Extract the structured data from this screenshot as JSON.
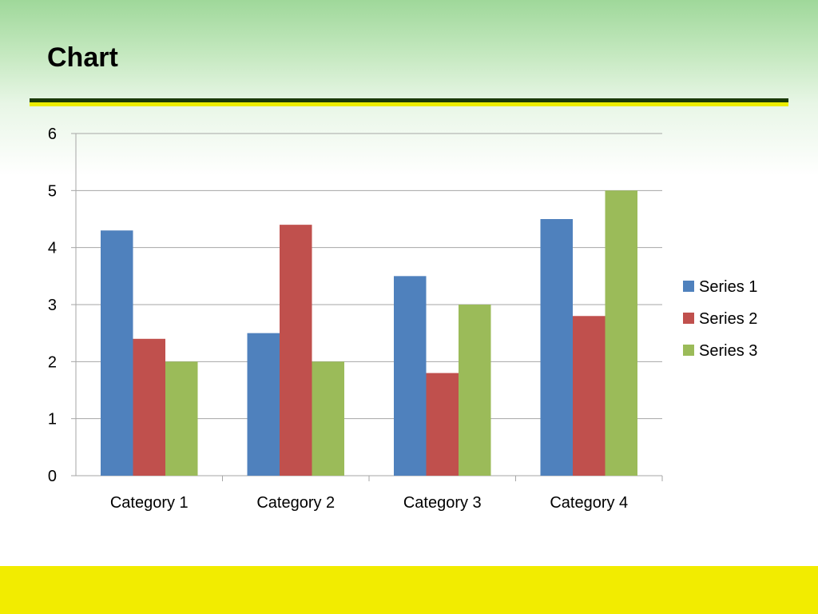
{
  "slide": {
    "title": "Chart",
    "colors": {
      "header_gradient_top": "#9fd89a",
      "rule_dark": "#1a3a08",
      "rule_yellow": "#eded00",
      "footer_band": "#f2ec00"
    }
  },
  "chart_data": {
    "type": "bar",
    "title": "",
    "xlabel": "",
    "ylabel": "",
    "categories": [
      "Category 1",
      "Category 2",
      "Category 3",
      "Category 4"
    ],
    "series": [
      {
        "name": "Series 1",
        "color": "#4f81bd",
        "values": [
          4.3,
          2.5,
          3.5,
          4.5
        ]
      },
      {
        "name": "Series 2",
        "color": "#c0504d",
        "values": [
          2.4,
          4.4,
          1.8,
          2.8
        ]
      },
      {
        "name": "Series 3",
        "color": "#9bbb59",
        "values": [
          2,
          2,
          3,
          5
        ]
      }
    ],
    "ylim": [
      0,
      6
    ],
    "yticks": [
      0,
      1,
      2,
      3,
      4,
      5,
      6
    ],
    "grid": true,
    "legend_position": "right"
  }
}
